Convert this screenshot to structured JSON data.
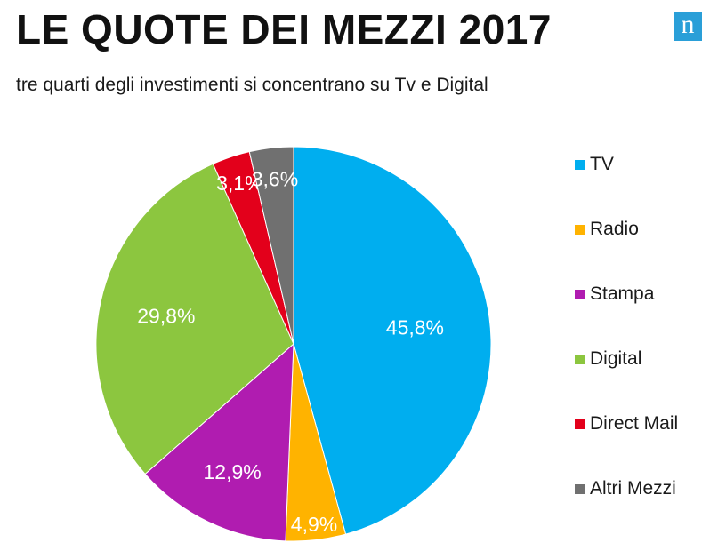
{
  "header": {
    "title": "LE QUOTE DEI MEZZI 2017",
    "subtitle": "tre quarti degli investimenti si concentrano su Tv e Digital",
    "logo_text": "n",
    "logo_color": "#2a9fd8"
  },
  "chart_data": {
    "type": "pie",
    "categories": [
      "TV",
      "Radio",
      "Stampa",
      "Digital",
      "Direct Mail",
      "Altri Mezzi"
    ],
    "values": [
      45.8,
      4.9,
      12.9,
      29.8,
      3.1,
      3.6
    ],
    "labels": [
      "45,8%",
      "4,9%",
      "12,9%",
      "29,8%",
      "3,1%",
      "3,6%"
    ],
    "colors": [
      "#00aeef",
      "#ffb300",
      "#b01cb0",
      "#8cc63f",
      "#e3001b",
      "#707070"
    ],
    "legend_position": "right",
    "start_angle": "top",
    "direction": "clockwise"
  }
}
